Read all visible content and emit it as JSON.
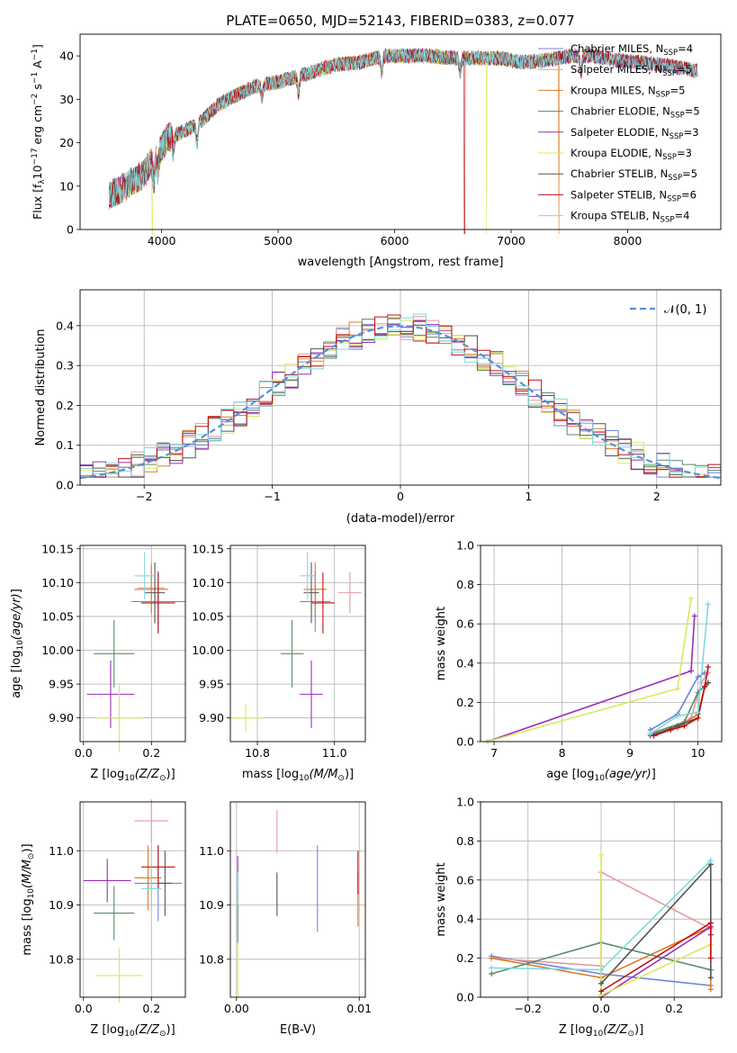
{
  "title": "PLATE=0650, MJD=52143, FIBERID=0383, z=0.077",
  "colors": {
    "Chabrier MILES": "#6f86d6",
    "Salpeter MILES": "#e69a9e",
    "Kroupa MILES": "#e07b28",
    "Chabrier ELODIE": "#5b8a66",
    "Salpeter ELODIE": "#9a2fb5",
    "Kroupa ELODIE": "#d9ea5a",
    "Chabrier STELIB": "#555555",
    "Salpeter STELIB": "#c01010",
    "Kroupa STELIB": "#7fd8e0",
    "normal": "#5b8fd6"
  },
  "legend_top": [
    {
      "label": "Chabrier MILES, N",
      "sub": "SSP",
      "tail": "=4"
    },
    {
      "label": "Salpeter MILES, N",
      "sub": "SSP",
      "tail": "=5"
    },
    {
      "label": "Kroupa MILES, N",
      "sub": "SSP",
      "tail": "=5"
    },
    {
      "label": "Chabrier ELODIE, N",
      "sub": "SSP",
      "tail": "=5"
    },
    {
      "label": "Salpeter ELODIE, N",
      "sub": "SSP",
      "tail": "=3"
    },
    {
      "label": "Kroupa ELODIE, N",
      "sub": "SSP",
      "tail": "=3"
    },
    {
      "label": "Chabrier STELIB, N",
      "sub": "SSP",
      "tail": "=5"
    },
    {
      "label": "Salpeter STELIB, N",
      "sub": "SSP",
      "tail": "=6"
    },
    {
      "label": "Kroupa STELIB, N",
      "sub": "SSP",
      "tail": "=4"
    }
  ],
  "chart_data": [
    {
      "type": "line",
      "panel": "spectrum",
      "xlabel": "wavelength [Angstrom, rest frame]",
      "ylabel": "Flux [f_λ 10^-17 erg cm^-2 s^-1 A^-1]",
      "xlim": [
        3300,
        8800
      ],
      "ylim": [
        0,
        45
      ],
      "xticks": [
        4000,
        5000,
        6000,
        7000,
        8000
      ],
      "yticks": [
        0,
        10,
        20,
        30,
        40
      ],
      "continuum": [
        [
          3550,
          8
        ],
        [
          3700,
          10
        ],
        [
          3850,
          13
        ],
        [
          3950,
          17
        ],
        [
          4050,
          21
        ],
        [
          4300,
          24
        ],
        [
          4500,
          29
        ],
        [
          4800,
          33
        ],
        [
          5000,
          34
        ],
        [
          5200,
          35.5
        ],
        [
          5500,
          38
        ],
        [
          5700,
          38.5
        ],
        [
          5900,
          40
        ],
        [
          6100,
          40
        ],
        [
          6300,
          40
        ],
        [
          6500,
          39.5
        ],
        [
          6700,
          39.5
        ],
        [
          6900,
          39.5
        ],
        [
          7100,
          38.5
        ],
        [
          7300,
          39
        ],
        [
          7500,
          40
        ],
        [
          7700,
          40
        ],
        [
          7900,
          39
        ],
        [
          8100,
          38.5
        ],
        [
          8300,
          38
        ],
        [
          8500,
          37
        ],
        [
          8700,
          36
        ]
      ],
      "absorption_features": [
        [
          3934,
          -5
        ],
        [
          3969,
          -4
        ],
        [
          4102,
          -3
        ],
        [
          4304,
          -4
        ],
        [
          4861,
          -3
        ],
        [
          5175,
          -4
        ],
        [
          5890,
          -4
        ],
        [
          6563,
          -3
        ],
        [
          7600,
          -4
        ]
      ],
      "deep_drops": [
        {
          "x": 3920,
          "series": "Kroupa ELODIE"
        },
        {
          "x": 6790,
          "series": "Kroupa ELODIE"
        },
        {
          "x": 6600,
          "series": "Salpeter STELIB"
        },
        {
          "x": 7410,
          "series": "Kroupa MILES"
        }
      ],
      "series_extents": [
        {
          "name": "Kroupa ELODIE",
          "x": [
            3550,
            7420
          ]
        },
        {
          "name": "Chabrier STELIB",
          "x": [
            3550,
            8600
          ]
        }
      ]
    },
    {
      "type": "bar",
      "panel": "residual histogram",
      "xlabel": "(data-model)/error",
      "ylabel": "Normed distribution",
      "xlim": [
        -2.5,
        2.5
      ],
      "ylim": [
        0,
        0.49
      ],
      "xticks": [
        -2,
        -1,
        0,
        1,
        2
      ],
      "yticks": [
        0.0,
        0.1,
        0.2,
        0.3,
        0.4
      ],
      "normal_label": "𝒩(0, 1)",
      "bins": 50
    },
    {
      "type": "scatter",
      "panel": "age vs Z",
      "xlabel": "Z [log10(Z/Z☉)]",
      "ylabel": "age [log10(age/yr)]",
      "xlim": [
        -0.01,
        0.3
      ],
      "ylim": [
        9.865,
        10.155
      ],
      "xticks": [
        0.0,
        0.2
      ],
      "yticks": [
        9.9,
        9.95,
        10.0,
        10.05,
        10.1,
        10.15
      ],
      "points": [
        {
          "series": "Chabrier MILES",
          "x": 0.22,
          "y": 10.072,
          "xe": 0.08,
          "ye": 0.045
        },
        {
          "series": "Salpeter MILES",
          "x": 0.2,
          "y": 10.092,
          "xe": 0.04,
          "ye": 0.04
        },
        {
          "series": "Kroupa MILES",
          "x": 0.2,
          "y": 10.09,
          "xe": 0.05,
          "ye": 0.035
        },
        {
          "series": "Chabrier ELODIE",
          "x": 0.09,
          "y": 9.995,
          "xe": 0.06,
          "ye": 0.05
        },
        {
          "series": "Salpeter ELODIE",
          "x": 0.08,
          "y": 9.935,
          "xe": 0.07,
          "ye": 0.05
        },
        {
          "series": "Kroupa ELODIE",
          "x": 0.105,
          "y": 9.9,
          "xe": 0.07,
          "ye": 0.05
        },
        {
          "series": "Chabrier STELIB",
          "x": 0.21,
          "y": 10.085,
          "xe": 0.03,
          "ye": 0.045
        },
        {
          "series": "Salpeter STELIB",
          "x": 0.22,
          "y": 10.07,
          "xe": 0.05,
          "ye": 0.045
        },
        {
          "series": "Kroupa STELIB",
          "x": 0.18,
          "y": 10.11,
          "xe": 0.03,
          "ye": 0.035
        }
      ]
    },
    {
      "type": "scatter",
      "panel": "age vs mass",
      "xlabel": "mass [log10(M/M☉)]",
      "ylabel": "",
      "xlim": [
        10.73,
        11.08
      ],
      "ylim": [
        9.865,
        10.155
      ],
      "xticks": [
        10.8,
        11.0
      ],
      "yticks": [
        9.9,
        9.95,
        10.0,
        10.05,
        10.1,
        10.15
      ],
      "points": [
        {
          "series": "Chabrier MILES",
          "x": 10.95,
          "y": 10.072,
          "xe": 0.04,
          "ye": 0.045
        },
        {
          "series": "Salpeter MILES",
          "x": 11.04,
          "y": 10.085,
          "xe": 0.03,
          "ye": 0.03
        },
        {
          "series": "Kroupa MILES",
          "x": 10.95,
          "y": 10.09,
          "xe": 0.03,
          "ye": 0.04
        },
        {
          "series": "Chabrier ELODIE",
          "x": 10.89,
          "y": 9.995,
          "xe": 0.03,
          "ye": 0.05
        },
        {
          "series": "Salpeter ELODIE",
          "x": 10.94,
          "y": 9.935,
          "xe": 0.03,
          "ye": 0.05
        },
        {
          "series": "Kroupa ELODIE",
          "x": 10.77,
          "y": 9.9,
          "xe": 0.05,
          "ye": 0.02
        },
        {
          "series": "Chabrier STELIB",
          "x": 10.94,
          "y": 10.085,
          "xe": 0.02,
          "ye": 0.045
        },
        {
          "series": "Salpeter STELIB",
          "x": 10.97,
          "y": 10.07,
          "xe": 0.03,
          "ye": 0.045
        },
        {
          "series": "Kroupa STELIB",
          "x": 10.93,
          "y": 10.11,
          "xe": 0.02,
          "ye": 0.035
        }
      ]
    },
    {
      "type": "line",
      "panel": "mass weight vs age",
      "xlabel": "age [log10(age/yr)]",
      "ylabel": "mass weight",
      "xlim": [
        6.8,
        10.35
      ],
      "ylim": [
        0.0,
        1.0
      ],
      "xticks": [
        7,
        8,
        9,
        10
      ],
      "yticks": [
        0.0,
        0.2,
        0.4,
        0.6,
        0.8,
        1.0
      ],
      "series": [
        {
          "name": "Chabrier MILES",
          "x": [
            9.3,
            9.7,
            10.0,
            10.1
          ],
          "y": [
            0.06,
            0.14,
            0.33,
            0.35
          ]
        },
        {
          "name": "Salpeter MILES",
          "x": [
            9.35,
            9.6,
            9.9,
            10.05,
            10.15
          ],
          "y": [
            0.04,
            0.06,
            0.12,
            0.3,
            0.35
          ]
        },
        {
          "name": "Kroupa MILES",
          "x": [
            9.4,
            9.7,
            10.0,
            10.1,
            10.15
          ],
          "y": [
            0.04,
            0.07,
            0.14,
            0.28,
            0.3
          ]
        },
        {
          "name": "Chabrier ELODIE",
          "x": [
            9.3,
            9.8,
            10.0,
            10.15
          ],
          "y": [
            0.04,
            0.1,
            0.25,
            0.3
          ]
        },
        {
          "name": "Salpeter ELODIE",
          "x": [
            6.9,
            9.9,
            9.95
          ],
          "y": [
            0.0,
            0.36,
            0.64
          ]
        },
        {
          "name": "Kroupa ELODIE",
          "x": [
            6.9,
            9.7,
            9.9
          ],
          "y": [
            0.0,
            0.27,
            0.73
          ]
        },
        {
          "name": "Chabrier STELIB",
          "x": [
            9.3,
            9.7,
            10.0,
            10.1,
            10.15
          ],
          "y": [
            0.03,
            0.08,
            0.12,
            0.28,
            0.3
          ]
        },
        {
          "name": "Salpeter STELIB",
          "x": [
            9.35,
            9.6,
            9.8,
            10.0,
            10.1,
            10.15
          ],
          "y": [
            0.03,
            0.06,
            0.08,
            0.12,
            0.28,
            0.38
          ]
        },
        {
          "name": "Kroupa STELIB",
          "x": [
            9.3,
            9.7,
            10.0,
            10.15
          ],
          "y": [
            0.04,
            0.13,
            0.15,
            0.7
          ]
        }
      ]
    },
    {
      "type": "scatter",
      "panel": "mass vs Z",
      "xlabel": "Z [log10(Z/Z☉)]",
      "ylabel": "mass [log10(M/M☉)]",
      "xlim": [
        -0.01,
        0.3
      ],
      "ylim": [
        10.73,
        11.09
      ],
      "xticks": [
        0.0,
        0.2
      ],
      "yticks": [
        10.8,
        10.9,
        11.0
      ],
      "points": [
        {
          "series": "Chabrier MILES",
          "x": 0.22,
          "y": 10.94,
          "xe": 0.07,
          "ye": 0.07
        },
        {
          "series": "Salpeter MILES",
          "x": 0.2,
          "y": 11.055,
          "xe": 0.05,
          "ye": 0.04
        },
        {
          "series": "Kroupa MILES",
          "x": 0.19,
          "y": 10.95,
          "xe": 0.04,
          "ye": 0.06
        },
        {
          "series": "Chabrier ELODIE",
          "x": 0.09,
          "y": 10.885,
          "xe": 0.06,
          "ye": 0.05
        },
        {
          "series": "Salpeter ELODIE",
          "x": 0.07,
          "y": 10.945,
          "xe": 0.07,
          "ye": 0.04
        },
        {
          "series": "Kroupa ELODIE",
          "x": 0.105,
          "y": 10.77,
          "xe": 0.07,
          "ye": 0.05
        },
        {
          "series": "Chabrier STELIB",
          "x": 0.24,
          "y": 10.94,
          "xe": 0.02,
          "ye": 0.06
        },
        {
          "series": "Salpeter STELIB",
          "x": 0.22,
          "y": 10.97,
          "xe": 0.05,
          "ye": 0.04
        },
        {
          "series": "Kroupa STELIB",
          "x": 0.2,
          "y": 10.93,
          "xe": 0.03,
          "ye": 0.04
        }
      ]
    },
    {
      "type": "scatter",
      "panel": "mass vs E(B-V)",
      "xlabel": "E(B-V)",
      "ylabel": "",
      "xlim": [
        -0.0005,
        0.0105
      ],
      "ylim": [
        10.73,
        11.09
      ],
      "xticks": [
        0.0,
        0.01
      ],
      "yticks": [
        10.8,
        10.9,
        11.0
      ],
      "points": [
        {
          "series": "Chabrier MILES",
          "x": 0.0066,
          "y": 10.93,
          "xe": 0,
          "ye": 0.08
        },
        {
          "series": "Salpeter MILES",
          "x": 0.0033,
          "y": 11.035,
          "xe": 0,
          "ye": 0.04
        },
        {
          "series": "Kroupa MILES",
          "x": 0.0099,
          "y": 10.91,
          "xe": 0,
          "ye": 0.05
        },
        {
          "series": "Chabrier ELODIE",
          "x": 0.0001,
          "y": 10.88,
          "xe": 0,
          "ye": 0.05
        },
        {
          "series": "Salpeter ELODIE",
          "x": 0.0001,
          "y": 10.95,
          "xe": 0,
          "ye": 0.04
        },
        {
          "series": "Kroupa ELODIE",
          "x": 0.0001,
          "y": 10.78,
          "xe": 0,
          "ye": 0.05
        },
        {
          "series": "Chabrier STELIB",
          "x": 0.0033,
          "y": 10.92,
          "xe": 0,
          "ye": 0.04
        },
        {
          "series": "Salpeter STELIB",
          "x": 0.0099,
          "y": 10.96,
          "xe": 0,
          "ye": 0.04
        },
        {
          "series": "Kroupa STELIB",
          "x": 0.0001,
          "y": 10.93,
          "xe": 0,
          "ye": 0.03
        }
      ]
    },
    {
      "type": "line",
      "panel": "mass weight vs Z",
      "xlabel": "Z [log10(Z/Z☉)]",
      "ylabel": "mass weight",
      "xlim": [
        -0.33,
        0.33
      ],
      "ylim": [
        0.0,
        1.0
      ],
      "xticks": [
        -0.2,
        0.0,
        0.2
      ],
      "yticks": [
        0.0,
        0.2,
        0.4,
        0.6,
        0.8,
        1.0
      ],
      "series": [
        {
          "name": "Chabrier MILES",
          "x": [
            -0.3,
            0.0,
            0.3
          ],
          "y": [
            0.21,
            0.12,
            0.06
          ]
        },
        {
          "name": "Salpeter MILES",
          "x": [
            -0.3,
            0.0,
            0.0,
            0.3
          ],
          "y": [
            0.2,
            0.16,
            0.64,
            0.35
          ]
        },
        {
          "name": "Kroupa MILES",
          "x": [
            -0.3,
            0.0,
            0.3,
            0.3
          ],
          "y": [
            0.2,
            0.1,
            0.36,
            0.04
          ]
        },
        {
          "name": "Chabrier ELODIE",
          "x": [
            -0.3,
            0.0,
            0.3
          ],
          "y": [
            0.12,
            0.28,
            0.14
          ]
        },
        {
          "name": "Salpeter ELODIE",
          "x": [
            0.0,
            0.3,
            0.3
          ],
          "y": [
            0.0,
            0.36,
            0.32
          ]
        },
        {
          "name": "Kroupa ELODIE",
          "x": [
            0.0,
            0.0,
            0.3
          ],
          "y": [
            0.73,
            0.01,
            0.27
          ]
        },
        {
          "name": "Chabrier STELIB",
          "x": [
            0.0,
            0.3,
            0.3
          ],
          "y": [
            0.07,
            0.68,
            0.1
          ]
        },
        {
          "name": "Salpeter STELIB",
          "x": [
            0.0,
            0.3,
            0.3
          ],
          "y": [
            0.03,
            0.38,
            0.2
          ]
        },
        {
          "name": "Kroupa STELIB",
          "x": [
            -0.3,
            0.0,
            0.3
          ],
          "y": [
            0.15,
            0.14,
            0.7
          ]
        }
      ]
    }
  ]
}
